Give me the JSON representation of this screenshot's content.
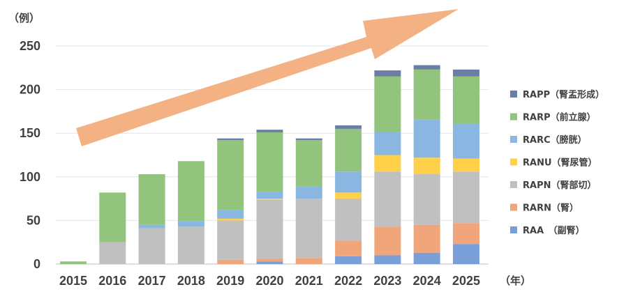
{
  "chart_data": {
    "type": "bar",
    "stacked": true,
    "y_unit_label": "（例）",
    "x_unit_label": "（年）",
    "ylim": [
      0,
      250
    ],
    "yticks": [
      0,
      50,
      100,
      150,
      200,
      250
    ],
    "grid": true,
    "legend_position": "right",
    "categories": [
      "2015",
      "2016",
      "2017",
      "2018",
      "2019",
      "2020",
      "2021",
      "2022",
      "2023",
      "2024",
      "2025"
    ],
    "series": [
      {
        "name": "RAA　（副腎）",
        "color": "#7a9ed8",
        "values": [
          0,
          0,
          0,
          0,
          0,
          3,
          0,
          9,
          10,
          13,
          23
        ]
      },
      {
        "name": "RARN（腎）",
        "color": "#f0a67a",
        "values": [
          0,
          0,
          0,
          0,
          5,
          3,
          7,
          18,
          33,
          32,
          24
        ]
      },
      {
        "name": "RAPN（腎部切）",
        "color": "#c0c0c0",
        "values": [
          0,
          25,
          41,
          43,
          45,
          68,
          68,
          48,
          63,
          58,
          59
        ]
      },
      {
        "name": "RANU（腎尿管）",
        "color": "#ffd04a",
        "values": [
          0,
          0,
          0,
          0,
          2,
          1,
          0,
          7,
          19,
          19,
          15
        ]
      },
      {
        "name": "RARC（膀胱）",
        "color": "#8ab6e2",
        "values": [
          0,
          0,
          4,
          6,
          10,
          8,
          14,
          24,
          26,
          44,
          40
        ]
      },
      {
        "name": "RARP（前立腺）",
        "color": "#93c47d",
        "values": [
          3,
          57,
          58,
          69,
          80,
          68,
          53,
          49,
          64,
          57,
          54
        ]
      },
      {
        "name": "RAPP（腎盂形成）",
        "color": "#6a7fa3",
        "values": [
          0,
          0,
          0,
          0,
          2,
          3,
          2,
          4,
          7,
          5,
          8
        ]
      }
    ],
    "legend_order": [
      6,
      5,
      4,
      3,
      2,
      1,
      0
    ],
    "trend_arrow_color": "#f4b183"
  }
}
